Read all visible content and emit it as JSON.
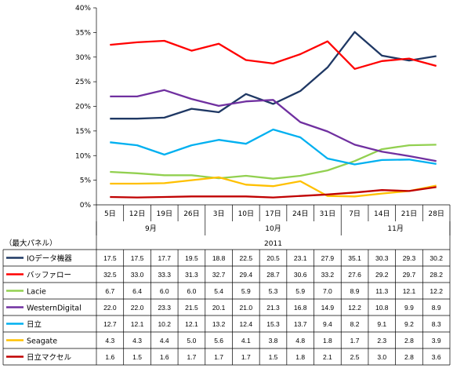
{
  "chart_data": {
    "type": "line",
    "title": "",
    "table_label": "（最大パネル）",
    "year_label": "2011",
    "months": [
      {
        "label": "9月",
        "span": [
          0,
          3
        ]
      },
      {
        "label": "10月",
        "span": [
          4,
          8
        ]
      },
      {
        "label": "11月",
        "span": [
          9,
          12
        ]
      }
    ],
    "categories": [
      "5日",
      "12日",
      "19日",
      "26日",
      "3日",
      "10日",
      "17日",
      "24日",
      "31日",
      "7日",
      "14日",
      "21日",
      "28日"
    ],
    "ylim": [
      0,
      40
    ],
    "yticks": [
      "0%",
      "5%",
      "10%",
      "15%",
      "20%",
      "25%",
      "30%",
      "35%",
      "40%"
    ],
    "grid": false,
    "legend": "table-left",
    "series": [
      {
        "name": "IOデータ機器",
        "color": "#1f3864",
        "values": [
          17.5,
          17.5,
          17.7,
          19.5,
          18.8,
          22.5,
          20.5,
          23.1,
          27.9,
          35.1,
          30.3,
          29.3,
          30.2
        ]
      },
      {
        "name": "バッファロー",
        "color": "#ff0000",
        "values": [
          32.5,
          33.0,
          33.3,
          31.3,
          32.7,
          29.4,
          28.7,
          30.6,
          33.2,
          27.6,
          29.2,
          29.7,
          28.2
        ]
      },
      {
        "name": "Lacie",
        "color": "#92d050",
        "values": [
          6.7,
          6.4,
          6.0,
          6.0,
          5.4,
          5.9,
          5.3,
          5.9,
          7.0,
          8.9,
          11.3,
          12.1,
          12.2
        ]
      },
      {
        "name": "WesternDigital",
        "color": "#7030a0",
        "values": [
          22.0,
          22.0,
          23.3,
          21.5,
          20.1,
          21.0,
          21.3,
          16.8,
          14.9,
          12.2,
          10.8,
          9.9,
          8.9
        ]
      },
      {
        "name": "日立",
        "color": "#00b0f0",
        "values": [
          12.7,
          12.1,
          10.2,
          12.1,
          13.2,
          12.4,
          15.3,
          13.7,
          9.4,
          8.2,
          9.1,
          9.2,
          8.3
        ]
      },
      {
        "name": "Seagate",
        "color": "#ffc000",
        "values": [
          4.3,
          4.3,
          4.4,
          5.0,
          5.6,
          4.1,
          3.8,
          4.8,
          1.8,
          1.7,
          2.3,
          2.8,
          3.9
        ]
      },
      {
        "name": "日立マクセル",
        "color": "#c00000",
        "values": [
          1.6,
          1.5,
          1.6,
          1.7,
          1.7,
          1.7,
          1.5,
          1.8,
          2.1,
          2.5,
          3.0,
          2.8,
          3.6
        ]
      }
    ]
  }
}
